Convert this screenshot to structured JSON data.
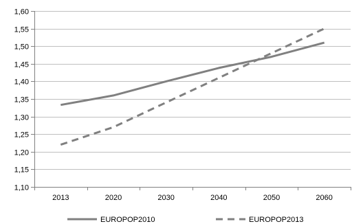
{
  "chart_data": {
    "type": "line",
    "categories": [
      "2013",
      "2020",
      "2030",
      "2040",
      "2050",
      "2060"
    ],
    "series": [
      {
        "name": "EUROPOP2010",
        "values": [
          1.333,
          1.36,
          1.4,
          1.438,
          1.47,
          1.51
        ],
        "color": "#808080",
        "dash": "solid"
      },
      {
        "name": "EUROPOP2013",
        "values": [
          1.22,
          1.27,
          1.34,
          1.41,
          1.48,
          1.55
        ],
        "color": "#808080",
        "dash": "dashed"
      }
    ],
    "y_ticks": [
      "1,10",
      "1,15",
      "1,20",
      "1,25",
      "1,30",
      "1,35",
      "1,40",
      "1,45",
      "1,50",
      "1,55",
      "1,60"
    ],
    "ylim": [
      1.1,
      1.6
    ],
    "y_step": 0.05,
    "grid": "horizontal",
    "legend_position": "bottom",
    "title": "",
    "xlabel": "",
    "ylabel": ""
  }
}
